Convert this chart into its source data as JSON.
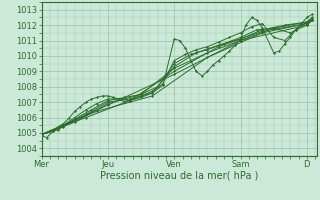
{
  "bg_color": "#cce8d8",
  "grid_color": "#a0c8b0",
  "line_color": "#2d6e2d",
  "xlabel": "Pression niveau de la mer( hPa )",
  "yticks": [
    1004,
    1005,
    1006,
    1007,
    1008,
    1009,
    1010,
    1011,
    1012,
    1013
  ],
  "ylim": [
    1003.5,
    1013.5
  ],
  "xtick_labels": [
    "Mer",
    "Jeu",
    "Ven",
    "Sam",
    "D"
  ],
  "xtick_positions": [
    0,
    1,
    2,
    3,
    4
  ],
  "xlim": [
    0,
    4.15
  ],
  "series": [
    [
      [
        0.0,
        1004.8
      ],
      [
        0.08,
        1004.7
      ],
      [
        0.17,
        1005.1
      ],
      [
        0.25,
        1005.4
      ],
      [
        0.33,
        1005.6
      ],
      [
        0.42,
        1006.0
      ],
      [
        0.5,
        1006.4
      ],
      [
        0.58,
        1006.7
      ],
      [
        0.67,
        1007.0
      ],
      [
        0.75,
        1007.2
      ],
      [
        0.83,
        1007.3
      ],
      [
        0.92,
        1007.4
      ],
      [
        1.0,
        1007.4
      ],
      [
        1.08,
        1007.3
      ],
      [
        1.17,
        1007.2
      ],
      [
        1.25,
        1007.0
      ],
      [
        1.33,
        1007.1
      ],
      [
        1.5,
        1007.3
      ],
      [
        1.67,
        1007.6
      ],
      [
        1.83,
        1008.1
      ],
      [
        2.0,
        1011.1
      ],
      [
        2.08,
        1011.0
      ],
      [
        2.17,
        1010.5
      ],
      [
        2.25,
        1009.7
      ],
      [
        2.33,
        1009.0
      ],
      [
        2.42,
        1008.7
      ],
      [
        2.5,
        1009.0
      ],
      [
        2.58,
        1009.4
      ],
      [
        2.67,
        1009.7
      ],
      [
        2.75,
        1010.0
      ],
      [
        2.83,
        1010.3
      ],
      [
        2.92,
        1010.7
      ],
      [
        3.0,
        1011.1
      ],
      [
        3.08,
        1012.0
      ],
      [
        3.17,
        1012.5
      ],
      [
        3.25,
        1012.3
      ],
      [
        3.33,
        1011.8
      ],
      [
        3.5,
        1010.2
      ],
      [
        3.58,
        1010.3
      ],
      [
        3.67,
        1010.8
      ],
      [
        3.75,
        1011.2
      ],
      [
        3.83,
        1011.7
      ],
      [
        3.92,
        1012.1
      ],
      [
        4.0,
        1012.5
      ],
      [
        4.08,
        1012.7
      ]
    ],
    [
      [
        0.0,
        1004.9
      ],
      [
        0.17,
        1005.1
      ],
      [
        0.33,
        1005.5
      ],
      [
        0.5,
        1006.0
      ],
      [
        0.67,
        1006.5
      ],
      [
        0.83,
        1006.9
      ],
      [
        1.0,
        1007.2
      ],
      [
        1.17,
        1007.2
      ],
      [
        1.33,
        1007.1
      ],
      [
        1.5,
        1007.4
      ],
      [
        1.67,
        1007.7
      ],
      [
        1.83,
        1008.2
      ],
      [
        2.0,
        1009.7
      ],
      [
        2.17,
        1010.1
      ],
      [
        2.33,
        1010.4
      ],
      [
        2.5,
        1010.6
      ],
      [
        2.67,
        1010.9
      ],
      [
        2.83,
        1011.2
      ],
      [
        3.0,
        1011.5
      ],
      [
        3.17,
        1011.9
      ],
      [
        3.33,
        1012.1
      ],
      [
        3.5,
        1011.2
      ],
      [
        3.67,
        1011.0
      ],
      [
        3.83,
        1011.7
      ],
      [
        4.0,
        1012.2
      ],
      [
        4.08,
        1012.5
      ]
    ],
    [
      [
        0.0,
        1004.9
      ],
      [
        0.25,
        1005.2
      ],
      [
        0.5,
        1005.9
      ],
      [
        0.75,
        1006.5
      ],
      [
        1.0,
        1007.1
      ],
      [
        1.25,
        1007.3
      ],
      [
        1.5,
        1007.5
      ],
      [
        1.75,
        1008.0
      ],
      [
        2.0,
        1009.5
      ],
      [
        2.25,
        1010.1
      ],
      [
        2.5,
        1010.4
      ],
      [
        2.75,
        1010.8
      ],
      [
        3.0,
        1011.2
      ],
      [
        3.25,
        1011.7
      ],
      [
        3.5,
        1011.8
      ],
      [
        3.75,
        1011.5
      ],
      [
        4.0,
        1012.0
      ],
      [
        4.08,
        1012.4
      ]
    ],
    [
      [
        0.0,
        1004.9
      ],
      [
        0.33,
        1005.4
      ],
      [
        0.67,
        1006.2
      ],
      [
        1.0,
        1007.0
      ],
      [
        1.33,
        1007.2
      ],
      [
        1.67,
        1007.6
      ],
      [
        2.0,
        1009.3
      ],
      [
        2.33,
        1010.2
      ],
      [
        2.67,
        1010.7
      ],
      [
        3.0,
        1011.1
      ],
      [
        3.33,
        1011.7
      ],
      [
        3.67,
        1012.0
      ],
      [
        4.0,
        1012.2
      ],
      [
        4.08,
        1012.4
      ]
    ],
    [
      [
        0.0,
        1004.9
      ],
      [
        0.5,
        1005.7
      ],
      [
        1.0,
        1006.9
      ],
      [
        1.5,
        1007.5
      ],
      [
        2.0,
        1009.2
      ],
      [
        2.5,
        1010.2
      ],
      [
        3.0,
        1011.0
      ],
      [
        3.5,
        1011.8
      ],
      [
        4.0,
        1012.2
      ],
      [
        4.08,
        1012.4
      ]
    ],
    [
      [
        0.0,
        1004.9
      ],
      [
        0.67,
        1006.0
      ],
      [
        1.33,
        1007.1
      ],
      [
        2.0,
        1009.0
      ],
      [
        2.67,
        1010.6
      ],
      [
        3.33,
        1011.6
      ],
      [
        4.0,
        1012.1
      ],
      [
        4.08,
        1012.3
      ]
    ],
    [
      [
        0.0,
        1004.9
      ],
      [
        0.83,
        1006.4
      ],
      [
        1.67,
        1007.4
      ],
      [
        2.5,
        1009.9
      ],
      [
        3.33,
        1011.5
      ],
      [
        4.0,
        1012.1
      ],
      [
        4.08,
        1012.3
      ]
    ],
    [
      [
        0.0,
        1004.9
      ],
      [
        1.0,
        1006.8
      ],
      [
        2.0,
        1008.8
      ],
      [
        3.0,
        1011.0
      ],
      [
        4.0,
        1012.0
      ],
      [
        4.08,
        1012.3
      ]
    ]
  ]
}
